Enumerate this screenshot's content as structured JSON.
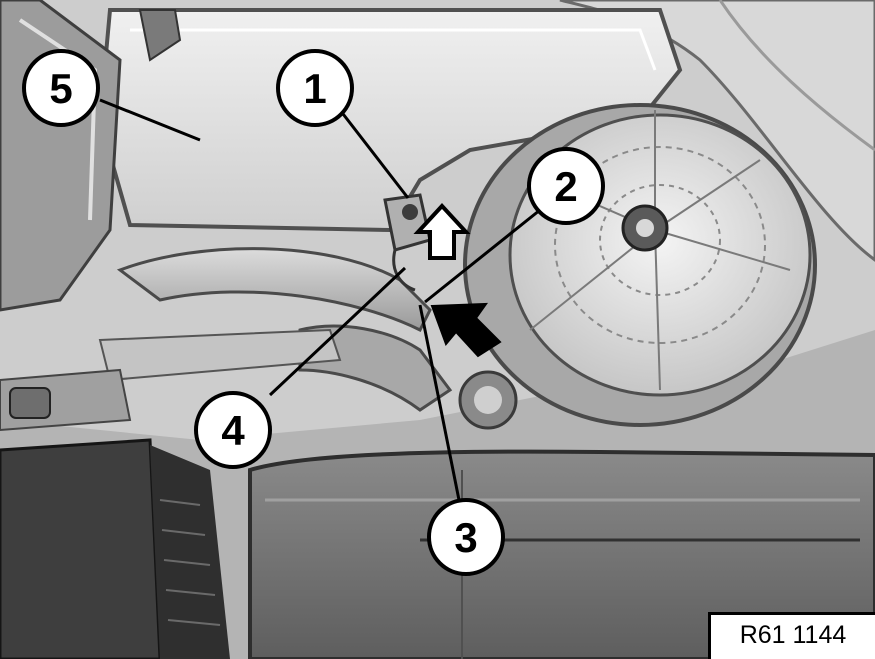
{
  "figure": {
    "code": "R61 1144",
    "callouts": [
      {
        "id": "callout-1",
        "label": "1"
      },
      {
        "id": "callout-2",
        "label": "2"
      },
      {
        "id": "callout-3",
        "label": "3"
      },
      {
        "id": "callout-4",
        "label": "4"
      },
      {
        "id": "callout-5",
        "label": "5"
      }
    ],
    "arrows": [
      "up-arrow-icon",
      "diagonal-arrow-icon"
    ]
  },
  "colors": {
    "background": "#ffffff",
    "ink": "#000000",
    "light_gray": "#e6e6e6",
    "mid_gray": "#b8b8b8",
    "dark_gray": "#6a6a6a"
  }
}
